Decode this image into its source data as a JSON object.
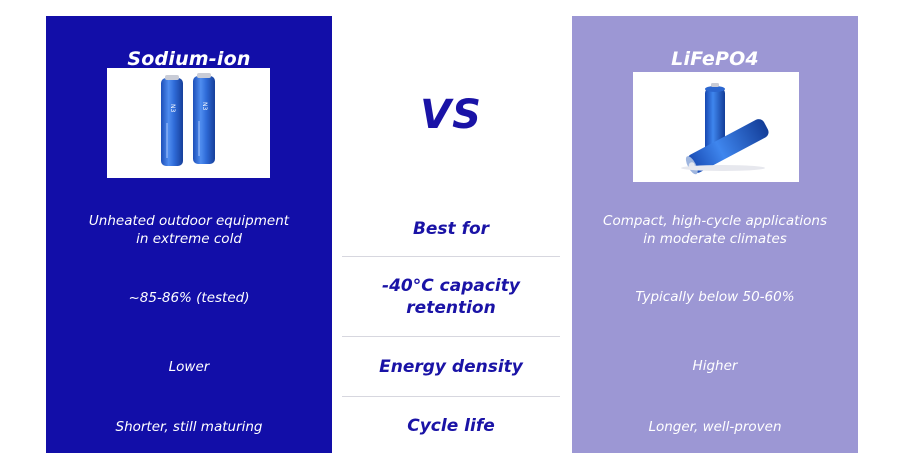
{
  "comparison": {
    "vs_label": "VS",
    "left": {
      "title": "Sodium-ion",
      "accent_color": "#120ea8",
      "image_icon": "cylindrical-battery-pair-icon",
      "best_for_line1": "Unheated outdoor equipment",
      "best_for_line2": "in extreme cold",
      "capacity_retention": "~85-86% (tested)",
      "energy_density": "Lower",
      "cycle_life": "Shorter, still maturing"
    },
    "right": {
      "title": "LiFePO4",
      "accent_color": "#9c97d4",
      "image_icon": "cylindrical-battery-pair-icon",
      "best_for_line1": "Compact, high-cycle applications",
      "best_for_line2": "in moderate climates",
      "capacity_retention": "Typically below 50-60%",
      "energy_density": "Higher",
      "cycle_life": "Longer, well-proven"
    },
    "criteria": {
      "best_for": "Best for",
      "capacity_line1": "-40°C capacity",
      "capacity_line2": "retention",
      "energy_density": "Energy density",
      "cycle_life": "Cycle life"
    }
  }
}
